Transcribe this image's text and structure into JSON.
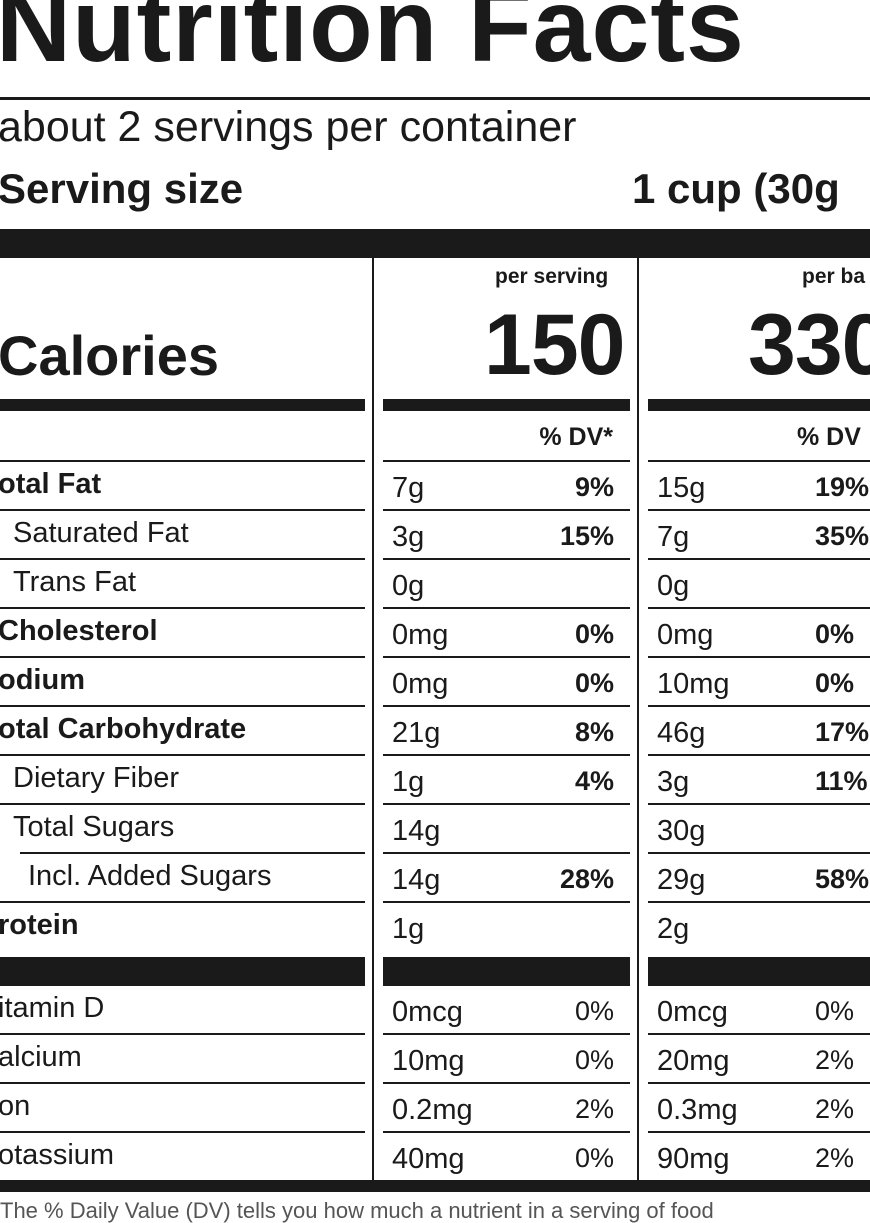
{
  "title": "Nutrition Facts",
  "servings_per_container": "about 2 servings per container",
  "serving_size": {
    "label": "Serving size",
    "value": "1 cup (30g"
  },
  "columns": {
    "per_serving": "per serving",
    "per_bag": "per ba"
  },
  "calories": {
    "label": "Calories",
    "per_serving": "150",
    "per_bag": "330"
  },
  "dv_header": {
    "per_serving": "% DV*",
    "per_bag": "% DV"
  },
  "nutrients": [
    {
      "label": "otal Fat",
      "bold": true,
      "indent": 0,
      "serving_amount": "7g",
      "serving_dv": "9%",
      "bag_amount": "15g",
      "bag_dv": "19%"
    },
    {
      "label": "Saturated Fat",
      "bold": false,
      "indent": 1,
      "serving_amount": "3g",
      "serving_dv": "15%",
      "bag_amount": "7g",
      "bag_dv": "35%"
    },
    {
      "label": "Trans Fat",
      "bold": false,
      "indent": 1,
      "serving_amount": "0g",
      "serving_dv": "",
      "bag_amount": "0g",
      "bag_dv": ""
    },
    {
      "label": "Cholesterol",
      "bold": true,
      "indent": 0,
      "serving_amount": "0mg",
      "serving_dv": "0%",
      "bag_amount": "0mg",
      "bag_dv": "0%"
    },
    {
      "label": "odium",
      "bold": true,
      "indent": 0,
      "serving_amount": "0mg",
      "serving_dv": "0%",
      "bag_amount": "10mg",
      "bag_dv": "0%"
    },
    {
      "label": "otal Carbohydrate",
      "bold": true,
      "indent": 0,
      "serving_amount": "21g",
      "serving_dv": "8%",
      "bag_amount": "46g",
      "bag_dv": "17%"
    },
    {
      "label": "Dietary Fiber",
      "bold": false,
      "indent": 1,
      "serving_amount": "1g",
      "serving_dv": "4%",
      "bag_amount": "3g",
      "bag_dv": "11%"
    },
    {
      "label": "Total Sugars",
      "bold": false,
      "indent": 1,
      "serving_amount": "14g",
      "serving_dv": "",
      "bag_amount": "30g",
      "bag_dv": ""
    },
    {
      "label": "Incl. Added Sugars",
      "bold": false,
      "indent": 2,
      "serving_amount": "14g",
      "serving_dv": "28%",
      "bag_amount": "29g",
      "bag_dv": "58%"
    },
    {
      "label": "rotein",
      "bold": true,
      "indent": 0,
      "serving_amount": "1g",
      "serving_dv": "",
      "bag_amount": "2g",
      "bag_dv": ""
    }
  ],
  "vitamins": [
    {
      "label": "itamin D",
      "serving_amount": "0mcg",
      "serving_dv": "0%",
      "bag_amount": "0mcg",
      "bag_dv": "0%"
    },
    {
      "label": "alcium",
      "serving_amount": "10mg",
      "serving_dv": "0%",
      "bag_amount": "20mg",
      "bag_dv": "2%"
    },
    {
      "label": "on",
      "serving_amount": "0.2mg",
      "serving_dv": "2%",
      "bag_amount": "0.3mg",
      "bag_dv": "2%"
    },
    {
      "label": "otassium",
      "serving_amount": "40mg",
      "serving_dv": "0%",
      "bag_amount": "90mg",
      "bag_dv": "2%"
    }
  ],
  "footnote": "The % Daily Value (DV) tells you how much a nutrient in a serving of food"
}
